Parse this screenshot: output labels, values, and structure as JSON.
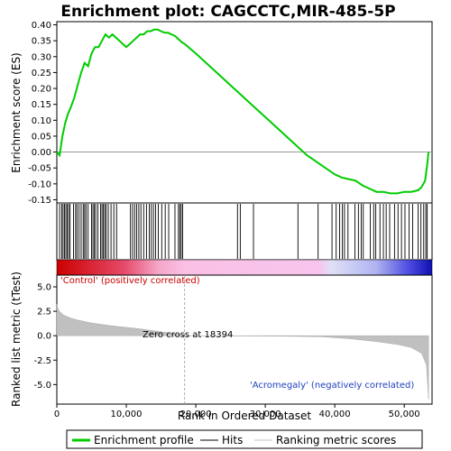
{
  "chart_data": [
    {
      "type": "line",
      "title": "Enrichment plot: CAGCCTC,MIR-485-5P",
      "ylabel": "Enrichment score (ES)",
      "xlim": [
        0,
        54000
      ],
      "ylim": [
        -0.16,
        0.41
      ],
      "yticks": [
        "-0.15",
        "-0.10",
        "-0.05",
        "0.00",
        "0.05",
        "0.10",
        "0.15",
        "0.20",
        "0.25",
        "0.30",
        "0.35",
        "0.40"
      ],
      "series": [
        {
          "name": "Enrichment profile",
          "color": "#00cc00",
          "x": [
            0,
            400,
            800,
            1200,
            1600,
            2000,
            2500,
            3000,
            3500,
            4000,
            4500,
            5000,
            5500,
            6000,
            6500,
            7000,
            7500,
            8000,
            8500,
            9000,
            9500,
            10000,
            10500,
            11000,
            11500,
            12000,
            12500,
            13000,
            13500,
            14000,
            14500,
            15000,
            15500,
            16000,
            16500,
            17000,
            17500,
            18000,
            18394,
            20000,
            22000,
            24000,
            26000,
            28000,
            30000,
            32000,
            34000,
            36000,
            38000,
            40000,
            41000,
            42000,
            43000,
            44000,
            45000,
            46000,
            47000,
            48000,
            49000,
            50000,
            51000,
            52000,
            52500,
            53000,
            53300,
            53500
          ],
          "y": [
            0.0,
            -0.01,
            0.05,
            0.09,
            0.12,
            0.14,
            0.17,
            0.21,
            0.25,
            0.28,
            0.27,
            0.31,
            0.33,
            0.33,
            0.35,
            0.37,
            0.36,
            0.37,
            0.36,
            0.35,
            0.34,
            0.33,
            0.34,
            0.35,
            0.36,
            0.37,
            0.37,
            0.38,
            0.38,
            0.385,
            0.385,
            0.38,
            0.375,
            0.375,
            0.37,
            0.365,
            0.355,
            0.345,
            0.34,
            0.31,
            0.27,
            0.23,
            0.19,
            0.15,
            0.11,
            0.07,
            0.03,
            -0.01,
            -0.04,
            -0.07,
            -0.08,
            -0.085,
            -0.09,
            -0.105,
            -0.115,
            -0.125,
            -0.125,
            -0.13,
            -0.13,
            -0.125,
            -0.125,
            -0.12,
            -0.11,
            -0.09,
            -0.04,
            0.0
          ]
        }
      ]
    },
    {
      "type": "scatter",
      "name": "Hits",
      "xlim": [
        0,
        54000
      ],
      "hits": [
        400,
        700,
        900,
        1100,
        1300,
        1500,
        1700,
        1900,
        2400,
        2700,
        2900,
        3200,
        3500,
        3800,
        4000,
        4200,
        4500,
        5000,
        5200,
        5400,
        5600,
        5900,
        6300,
        6500,
        6700,
        6900,
        7100,
        7400,
        7800,
        8200,
        8600,
        10600,
        10900,
        11200,
        11500,
        11800,
        12100,
        12500,
        12900,
        13300,
        13600,
        13900,
        14200,
        14600,
        15100,
        15600,
        16100,
        17000,
        17500,
        17700,
        17900,
        18100,
        26000,
        26400,
        28300,
        34700,
        37600,
        39600,
        40200,
        40700,
        41100,
        41400,
        41900,
        42900,
        43400,
        43800,
        44100,
        45100,
        45600,
        45900,
        46500,
        47000,
        47400,
        47900,
        48600,
        49100,
        49600,
        50100,
        50700,
        51200,
        52000,
        52400,
        52800,
        53100,
        53300
      ]
    },
    {
      "type": "area",
      "name": "Ranking list metric",
      "ylabel": "Ranked list metric (tTest)",
      "xlabel": "Rank in Ordered Dataset",
      "xlim": [
        0,
        54000
      ],
      "ylim": [
        -7,
        6.2
      ],
      "xticks": [
        "0",
        "10,000",
        "20,000",
        "30,000",
        "40,000",
        "50,000"
      ],
      "yticks": [
        "5.0",
        "2.5",
        "0.0",
        "-2.5",
        "-5.0"
      ],
      "zero_cross": 18394,
      "x": [
        0,
        200,
        500,
        1000,
        2000,
        3000,
        5000,
        8000,
        12000,
        16000,
        18394,
        25000,
        32000,
        38000,
        42000,
        46000,
        49000,
        51000,
        52500,
        53200,
        53500
      ],
      "y": [
        3.2,
        2.7,
        2.4,
        2.1,
        1.8,
        1.6,
        1.3,
        1.0,
        0.7,
        0.3,
        0.0,
        -0.02,
        -0.05,
        -0.1,
        -0.3,
        -0.6,
        -0.9,
        -1.2,
        -1.8,
        -3.0,
        -6.5
      ],
      "annotations": {
        "positive": "'Control' (positively correlated)",
        "negative": "'Acromegaly' (negatively correlated)",
        "zero_cross": "Zero cross at 18394"
      }
    }
  ],
  "legend": {
    "items": [
      {
        "label": "Enrichment profile",
        "color": "#00cc00"
      },
      {
        "label": "Hits",
        "color": "#000000"
      },
      {
        "label": "Ranking metric scores",
        "color": "#c0c0c0"
      }
    ]
  }
}
